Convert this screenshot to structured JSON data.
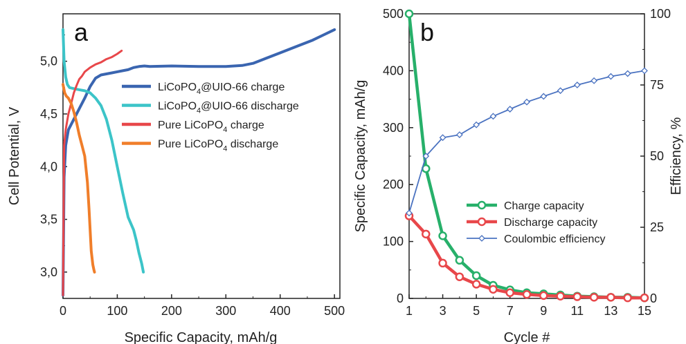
{
  "chart_data": [
    {
      "type": "line",
      "panel_label": "a",
      "xlabel": "Specific Capacity, mAh/g",
      "ylabel": "Cell Potential, V",
      "xlim": [
        0,
        510
      ],
      "ylim": [
        2.75,
        5.45
      ],
      "xticks": [
        "0",
        "100",
        "200",
        "300",
        "400",
        "500"
      ],
      "xtick_values": [
        0,
        100,
        200,
        300,
        400,
        500
      ],
      "yticks": [
        "3,0",
        "3,5",
        "4,0",
        "4,5",
        "5,0"
      ],
      "ytick_values": [
        3.0,
        3.5,
        4.0,
        4.5,
        5.0
      ],
      "grid": false,
      "legend_position": "right",
      "series": [
        {
          "name_parts": [
            [
              "LiCoPO",
              "4",
              "@UIO-66 charge"
            ]
          ],
          "name": "LiCoPO4@UIO-66 charge",
          "color": "#3a65b0",
          "x": [
            0,
            2,
            5,
            10,
            20,
            30,
            40,
            50,
            60,
            70,
            80,
            90,
            100,
            110,
            120,
            130,
            140,
            150,
            160,
            200,
            250,
            300,
            330,
            350,
            370,
            400,
            430,
            460,
            480,
            500
          ],
          "y": [
            2.78,
            3.9,
            4.2,
            4.35,
            4.45,
            4.55,
            4.65,
            4.76,
            4.84,
            4.87,
            4.88,
            4.89,
            4.9,
            4.91,
            4.92,
            4.94,
            4.95,
            4.955,
            4.95,
            4.955,
            4.95,
            4.95,
            4.96,
            4.98,
            5.02,
            5.08,
            5.14,
            5.2,
            5.25,
            5.3
          ]
        },
        {
          "name_parts": [
            [
              "LiCoPO",
              "4",
              "@UIO-66 discharge"
            ]
          ],
          "name": "LiCoPO4@UIO-66 discharge",
          "color": "#3cc4c8",
          "x": [
            0,
            2,
            5,
            8,
            12,
            20,
            30,
            40,
            50,
            60,
            70,
            80,
            90,
            100,
            110,
            120,
            130,
            135,
            140,
            145,
            148
          ],
          "y": [
            5.3,
            5.0,
            4.85,
            4.78,
            4.75,
            4.74,
            4.73,
            4.72,
            4.7,
            4.65,
            4.58,
            4.45,
            4.25,
            4.0,
            3.75,
            3.52,
            3.4,
            3.3,
            3.18,
            3.08,
            3.0
          ],
          "line_width": 4
        },
        {
          "name_parts": [
            [
              "Pure LiCoPO",
              "4",
              " charge"
            ]
          ],
          "name": "Pure LiCoPO4 charge",
          "color": "#e8474a",
          "x": [
            0,
            2,
            5,
            10,
            15,
            20,
            25,
            30,
            35,
            40,
            50,
            60,
            70,
            80,
            90,
            100,
            108
          ],
          "y": [
            2.78,
            4.2,
            4.35,
            4.5,
            4.6,
            4.7,
            4.77,
            4.83,
            4.86,
            4.9,
            4.94,
            4.97,
            4.99,
            5.02,
            5.04,
            5.07,
            5.1
          ],
          "line_width": 3
        },
        {
          "name_parts": [
            [
              "Pure LiCoPO",
              "4",
              " discharge"
            ]
          ],
          "name": "Pure LiCoPO4 discharge",
          "color": "#f07e2a",
          "x": [
            0,
            3,
            6,
            10,
            15,
            20,
            25,
            30,
            35,
            40,
            45,
            48,
            50,
            52,
            55,
            57,
            58
          ],
          "y": [
            4.78,
            4.7,
            4.67,
            4.65,
            4.6,
            4.52,
            4.42,
            4.3,
            4.2,
            4.1,
            3.85,
            3.6,
            3.4,
            3.2,
            3.07,
            3.02,
            3.0
          ],
          "line_width": 4
        }
      ]
    },
    {
      "type": "line",
      "panel_label": "b",
      "xlabel": "Cycle #",
      "ylabel": "Specific Capacity, mAh/g",
      "ylabel_right": "Efficiency, %",
      "xlim": [
        1,
        15
      ],
      "ylim": [
        0,
        500
      ],
      "ylim_right": [
        0,
        100
      ],
      "xticks": [
        "1",
        "3",
        "5",
        "7",
        "9",
        "11",
        "13",
        "15"
      ],
      "xtick_values": [
        1,
        3,
        5,
        7,
        9,
        11,
        13,
        15
      ],
      "yticks": [
        "0",
        "100",
        "200",
        "300",
        "400",
        "500"
      ],
      "ytick_values": [
        0,
        100,
        200,
        300,
        400,
        500
      ],
      "yticks_right": [
        "0",
        "25",
        "50",
        "75",
        "100"
      ],
      "ytick_values_right": [
        0,
        25,
        50,
        75,
        100
      ],
      "grid": false,
      "legend_position": "right",
      "x": [
        1,
        2,
        3,
        4,
        5,
        6,
        7,
        8,
        9,
        10,
        11,
        12,
        13,
        14,
        15
      ],
      "series": [
        {
          "name": "Charge capacity",
          "color": "#27b06a",
          "marker": "circle",
          "axis": "left",
          "values": [
            500,
            228,
            110,
            67,
            40,
            23,
            15,
            10,
            8,
            6,
            4,
            3,
            2,
            2,
            1
          ]
        },
        {
          "name": "Discharge capacity",
          "color": "#e8474a",
          "marker": "circle",
          "axis": "left",
          "values": [
            145,
            113,
            62,
            38,
            25,
            16,
            10,
            7,
            5,
            4,
            3,
            2,
            2,
            1,
            1
          ]
        },
        {
          "name": "Coulombic efficiency",
          "color": "#4a72c0",
          "marker": "diamond",
          "axis": "right",
          "values": [
            30,
            50,
            56.5,
            57.5,
            61,
            64,
            66.5,
            69,
            71,
            73,
            75,
            76.5,
            78,
            79,
            80
          ]
        }
      ]
    }
  ]
}
